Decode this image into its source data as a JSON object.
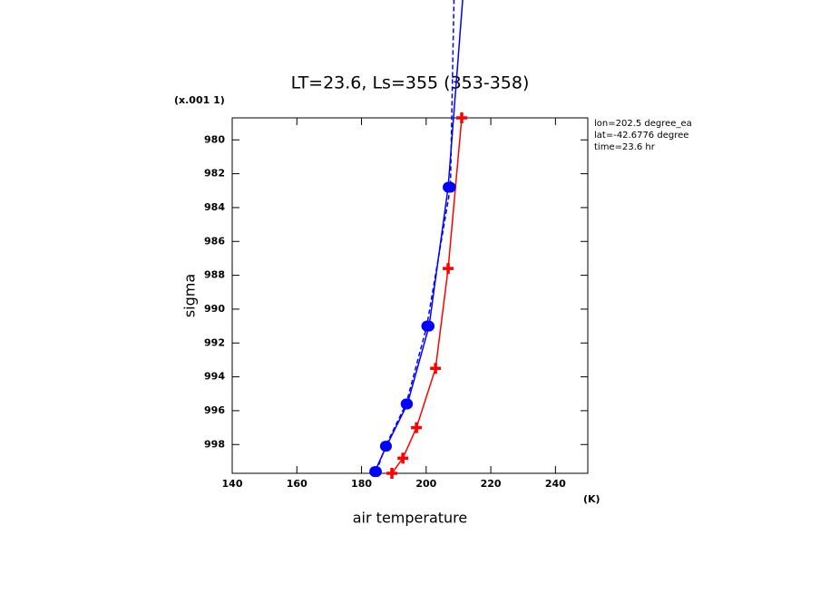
{
  "chart_data": {
    "type": "line",
    "title": "LT=23.6, Ls=355 (353-358)",
    "y_scale_note": "(x.001 1)",
    "xlabel": "air temperature",
    "x_unit": "(K)",
    "ylabel": "sigma",
    "annotations": [
      "lon=202.5 degree_ea",
      "lat=-42.6776 degree",
      "time=23.6 hr"
    ],
    "xlim": [
      140,
      250
    ],
    "xticks": [
      140,
      160,
      180,
      200,
      220,
      240
    ],
    "ylim": [
      999.7,
      978.7
    ],
    "yticks": [
      980,
      982,
      984,
      986,
      988,
      990,
      992,
      994,
      996,
      998
    ],
    "series": [
      {
        "color": "#ff0000",
        "marker": "plus",
        "dash": false,
        "x": [
          189.4,
          192.8,
          197.0,
          202.9,
          206.8,
          211.0
        ],
        "values": [
          999.7,
          998.8,
          997.0,
          993.5,
          987.6,
          978.7
        ]
      },
      {
        "color": "#0000ff",
        "marker": "circle",
        "dash": false,
        "x": [
          184.1,
          187.7,
          194.2,
          200.9,
          206.8,
          211.3
        ],
        "values": [
          999.6,
          998.1,
          995.6,
          991.0,
          982.8,
          971.7
        ]
      },
      {
        "color": "#0000ff",
        "marker": "circle",
        "dash": true,
        "x": [
          184.6,
          187.4,
          193.8,
          200.2,
          207.5,
          208.6
        ],
        "values": [
          999.6,
          998.1,
          995.6,
          991.0,
          982.8,
          971.7
        ]
      }
    ]
  }
}
